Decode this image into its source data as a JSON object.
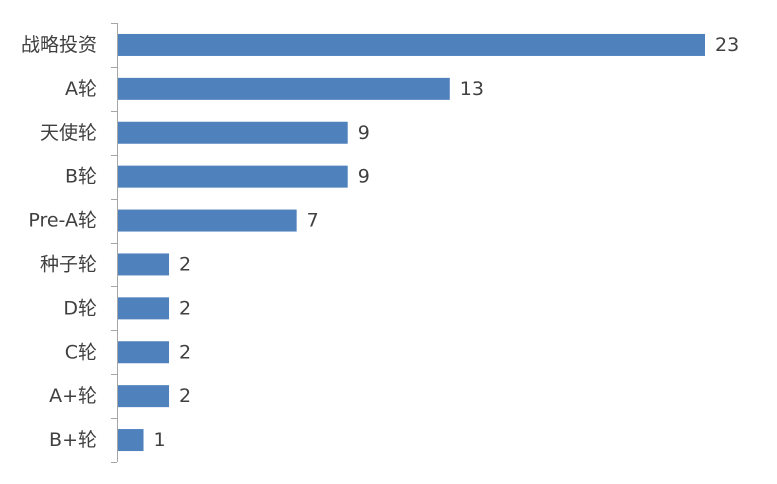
{
  "chart_data": {
    "type": "bar",
    "orientation": "horizontal",
    "categories": [
      "战略投资",
      "A轮",
      "天使轮",
      "B轮",
      "Pre-A轮",
      "种子轮",
      "D轮",
      "C轮",
      "A+轮",
      "B+轮"
    ],
    "values": [
      23,
      13,
      9,
      9,
      7,
      2,
      2,
      2,
      2,
      1
    ],
    "value_labels": [
      "23",
      "13",
      "9",
      "9",
      "7",
      "2",
      "2",
      "2",
      "2",
      "1"
    ],
    "title": "",
    "xlabel": "",
    "ylabel": "",
    "xlim": [
      0,
      23
    ],
    "grid": false,
    "legend": "none",
    "colors": {
      "bar": "#4f81bd",
      "axis": "#a6a6a6",
      "text": "#404040"
    }
  }
}
